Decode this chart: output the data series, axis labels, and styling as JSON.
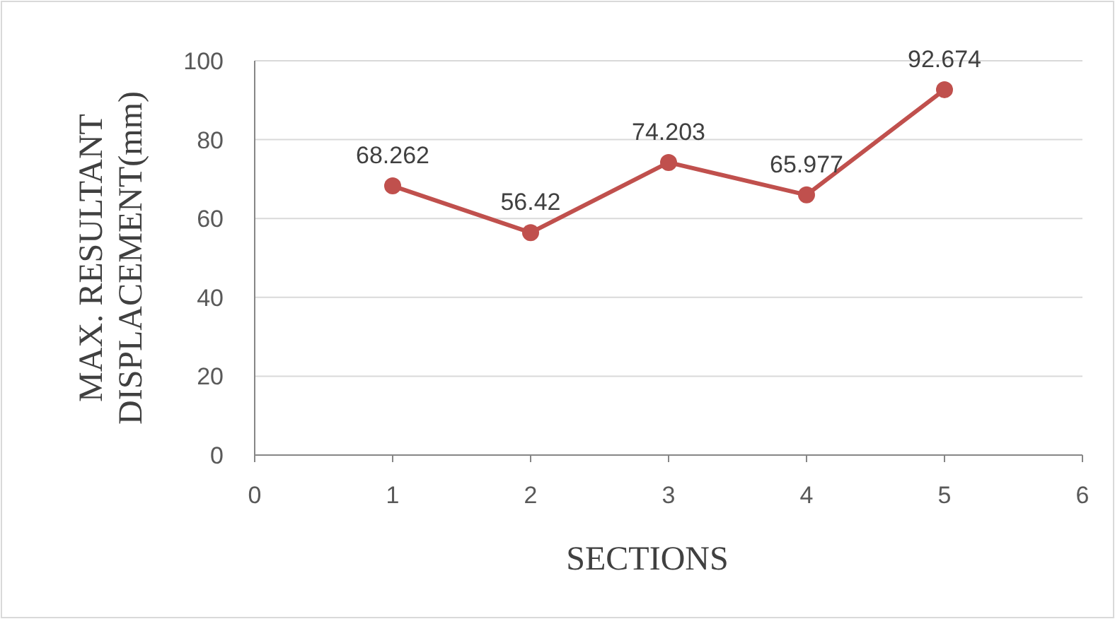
{
  "chart_data": {
    "type": "line",
    "xlabel": "SECTIONS",
    "ylabel": "MAX. RESULTANT DISPLACEMENT(mm)",
    "x": [
      1,
      2,
      3,
      4,
      5
    ],
    "series": [
      {
        "color": "#c0504d",
        "values": [
          68.262,
          56.42,
          74.203,
          65.977,
          92.674
        ]
      }
    ],
    "xlim": [
      0,
      6
    ],
    "ylim": [
      0,
      100
    ],
    "xticks": [
      0,
      1,
      2,
      3,
      4,
      5,
      6
    ],
    "yticks": [
      0,
      20,
      40,
      60,
      80,
      100
    ],
    "grid": "y",
    "marker": "circle",
    "line_style": "solid",
    "data_labels": true
  }
}
